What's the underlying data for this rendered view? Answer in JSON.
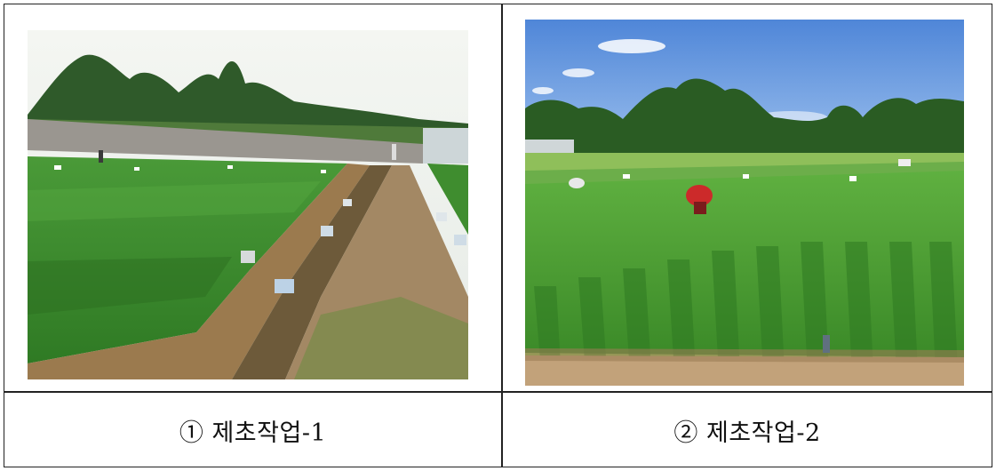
{
  "figure": {
    "cells": [
      {
        "caption": "① 제초작업-1"
      },
      {
        "caption": "② 제초작업-2"
      }
    ]
  },
  "colors": {
    "border": "#222222",
    "rice_green": "#3f9a2e",
    "sky_blue": "#6f9fe0",
    "soil": "#b4936a"
  }
}
